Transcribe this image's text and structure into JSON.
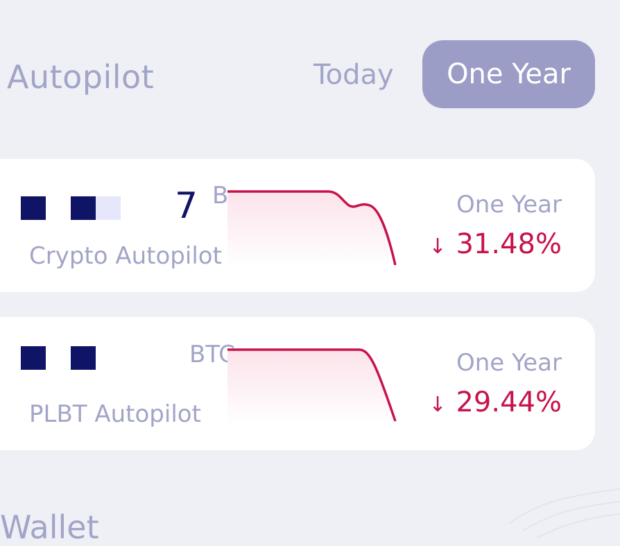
{
  "header": {
    "title": "Autopilot",
    "tabs": [
      {
        "label": "Today",
        "active": false
      },
      {
        "label": "One Year",
        "active": true
      }
    ]
  },
  "autopilots": [
    {
      "name": "Crypto Autopilot",
      "amount_partial": "7",
      "unit_partial": "B",
      "period": "One Year",
      "change_direction": "down",
      "change_arrow": "↓",
      "change_pct": "31.48%",
      "sparkline": [
        1.0,
        1.0,
        1.0,
        1.0,
        0.98,
        0.84,
        0.88,
        0.72,
        0.0
      ]
    },
    {
      "name": "PLBT Autopilot",
      "amount_partial": "",
      "unit_partial": "BTC",
      "period": "One Year",
      "change_direction": "down",
      "change_arrow": "↓",
      "change_pct": "29.44%",
      "sparkline": [
        1.0,
        1.0,
        1.0,
        1.0,
        1.0,
        0.97,
        0.7,
        0.0
      ]
    }
  ],
  "wallet": {
    "title": "Wallet"
  },
  "colors": {
    "accent": "#9c9dc6",
    "muted_text": "#a2a4c8",
    "negative": "#c8124a",
    "navy": "#0f1466"
  }
}
